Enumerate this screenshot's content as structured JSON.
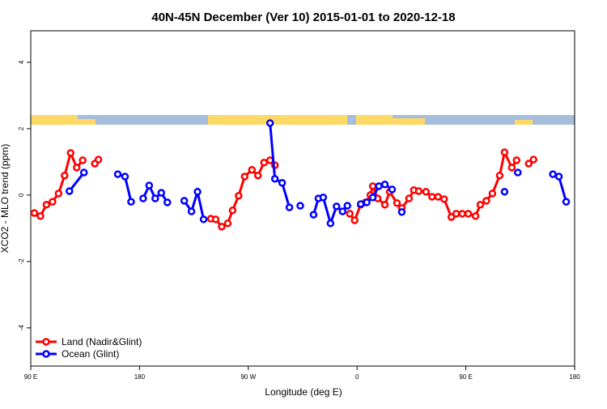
{
  "chart_data": {
    "type": "line",
    "title": "40N-45N December (Ver 10)   2015-01-01 to 2020-12-18",
    "x_label": "Longitude (deg E)",
    "y_label": "XCO2 - MLO trend (ppm)",
    "xlim": [
      90,
      540
    ],
    "ylim": [
      -5.15,
      4.95
    ],
    "xticks": [
      {
        "value": 90,
        "label": "90 E"
      },
      180,
      {
        "value": 270,
        "label": "90 W"
      },
      {
        "value": 360,
        "label": "0"
      },
      {
        "value": 450,
        "label": "90 E"
      },
      {
        "value": 540,
        "label": "180"
      }
    ],
    "yticks": [
      -4,
      -2,
      0,
      2,
      4
    ],
    "legend": "bottom-left",
    "series": [
      {
        "name": "Land (Nadir&Glint)",
        "color": "#ff0000",
        "x": [
          93,
          98,
          103,
          108,
          113,
          118,
          123,
          128,
          133,
          null,
          143,
          146,
          null,
          239,
          243,
          248,
          253,
          257,
          262,
          267,
          273,
          278,
          283,
          288,
          292,
          null,
          354,
          358,
          363,
          367,
          371,
          373,
          377,
          383,
          387,
          393,
          397,
          403,
          407,
          411,
          417,
          422,
          427,
          432,
          438,
          442,
          447,
          452,
          458,
          462,
          467,
          472,
          478,
          482,
          488,
          492,
          null,
          502,
          506
        ],
        "values": [
          -0.54,
          -0.63,
          -0.29,
          -0.2,
          0.05,
          0.59,
          1.27,
          0.83,
          1.05,
          null,
          0.95,
          1.07,
          null,
          -0.71,
          -0.73,
          -0.95,
          -0.85,
          -0.46,
          -0.02,
          0.56,
          0.76,
          0.59,
          0.98,
          1.05,
          0.9,
          null,
          -0.56,
          -0.76,
          -0.29,
          -0.22,
          0,
          0.27,
          -0.1,
          -0.29,
          0.1,
          -0.24,
          -0.39,
          -0.1,
          0.15,
          0.12,
          0.1,
          -0.05,
          -0.05,
          -0.12,
          -0.66,
          -0.56,
          -0.56,
          -0.56,
          -0.63,
          -0.29,
          -0.17,
          0.05,
          0.59,
          1.29,
          0.83,
          1.05,
          null,
          0.95,
          1.07
        ]
      },
      {
        "name": "Ocean (Glint)",
        "color": "#0000ff",
        "x": [
          122,
          134,
          null,
          162,
          168,
          173,
          null,
          183,
          188,
          193,
          198,
          203,
          null,
          217,
          223,
          228,
          233,
          null,
          288,
          292,
          298,
          304,
          null,
          313,
          null,
          324,
          328,
          332,
          338,
          343,
          348,
          352,
          null,
          363,
          368,
          373,
          378,
          383,
          389,
          null,
          397,
          null,
          482,
          null,
          493,
          null,
          522,
          527,
          533
        ],
        "values": [
          0.12,
          0.68,
          null,
          0.63,
          0.56,
          -0.2,
          null,
          -0.1,
          0.29,
          -0.1,
          0.07,
          -0.22,
          null,
          -0.17,
          -0.49,
          0.1,
          -0.73,
          null,
          2.17,
          0.49,
          0.37,
          -0.37,
          null,
          -0.32,
          null,
          -0.59,
          -0.1,
          -0.07,
          -0.85,
          -0.34,
          -0.49,
          -0.32,
          null,
          -0.27,
          -0.22,
          -0.07,
          0.27,
          0.32,
          0.17,
          null,
          -0.51,
          null,
          0.1,
          null,
          0.68,
          null,
          0.63,
          0.56,
          -0.2
        ]
      }
    ]
  }
}
